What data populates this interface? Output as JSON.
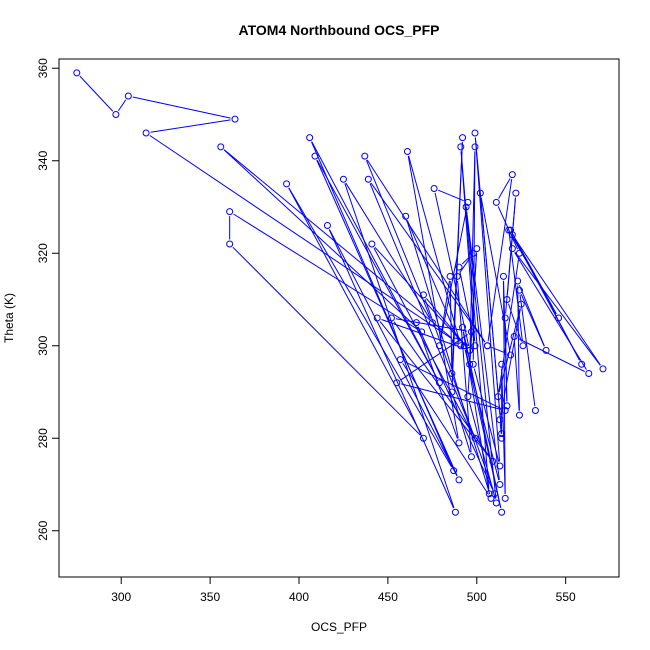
{
  "chart_data": {
    "type": "line",
    "title": "ATOM4 Northbound OCS_PFP",
    "xlabel": "OCS_PFP",
    "ylabel": "Theta (K)",
    "xlim": [
      265,
      580
    ],
    "ylim": [
      250,
      362
    ],
    "x_ticks": [
      300,
      350,
      400,
      450,
      500,
      550
    ],
    "y_ticks": [
      260,
      280,
      300,
      320,
      340,
      360
    ],
    "grid": false,
    "marker": "open-circle",
    "color": "#0000ff",
    "series": [
      {
        "values": [
          [
            275,
            359
          ],
          [
            297,
            350
          ],
          [
            304,
            354
          ],
          [
            364,
            349
          ],
          [
            314,
            346
          ],
          [
            488,
            301
          ],
          [
            356,
            343
          ],
          [
            469,
            303
          ],
          [
            361,
            329
          ],
          [
            361,
            322
          ],
          [
            470,
            280
          ],
          [
            393,
            335
          ],
          [
            487,
            273
          ],
          [
            406,
            345
          ],
          [
            479,
            292
          ],
          [
            409,
            341
          ],
          [
            490,
            271
          ],
          [
            416,
            326
          ],
          [
            488,
            264
          ],
          [
            425,
            336
          ],
          [
            475,
            305
          ],
          [
            437,
            341
          ],
          [
            506,
            300
          ],
          [
            439,
            336
          ],
          [
            499,
            280
          ],
          [
            441,
            322
          ],
          [
            496,
            299
          ],
          [
            444,
            306
          ],
          [
            509,
            275
          ],
          [
            452,
            306
          ],
          [
            497,
            303
          ],
          [
            455,
            292
          ],
          [
            516,
            286
          ],
          [
            457,
            297
          ],
          [
            508,
            267
          ],
          [
            460,
            328
          ],
          [
            491,
            300
          ],
          [
            461,
            342
          ],
          [
            490,
            279
          ],
          [
            466,
            305
          ],
          [
            510,
            268
          ],
          [
            470,
            311
          ],
          [
            496,
            299
          ],
          [
            476,
            334
          ],
          [
            495,
            331
          ],
          [
            479,
            300
          ],
          [
            485,
            315
          ],
          [
            486,
            294
          ],
          [
            492,
            345
          ],
          [
            486,
            290
          ],
          [
            497,
            276
          ],
          [
            489,
            315
          ],
          [
            498,
            320
          ],
          [
            490,
            317
          ],
          [
            499,
            300
          ],
          [
            491,
            343
          ],
          [
            507,
            268
          ],
          [
            492,
            304
          ],
          [
            514,
            264
          ],
          [
            493,
            300
          ],
          [
            513,
            270
          ],
          [
            494,
            330
          ],
          [
            511,
            266
          ],
          [
            495,
            289
          ],
          [
            500,
            321
          ],
          [
            496,
            296
          ],
          [
            499,
            343
          ],
          [
            498,
            296
          ],
          [
            513,
            274
          ],
          [
            499,
            346
          ],
          [
            514,
            281
          ],
          [
            502,
            333
          ],
          [
            519,
            298
          ],
          [
            506,
            300
          ],
          [
            520,
            337
          ],
          [
            511,
            331
          ],
          [
            524,
            320
          ],
          [
            512,
            289
          ],
          [
            525,
            309
          ],
          [
            513,
            284
          ],
          [
            514,
            280
          ],
          [
            514,
            296
          ],
          [
            516,
            267
          ],
          [
            515,
            315
          ],
          [
            517,
            287
          ],
          [
            516,
            306
          ],
          [
            522,
            333
          ],
          [
            517,
            310
          ],
          [
            526,
            300
          ],
          [
            518,
            325
          ],
          [
            546,
            306
          ],
          [
            519,
            325
          ],
          [
            559,
            296
          ],
          [
            520,
            324
          ],
          [
            571,
            295
          ],
          [
            520,
            321
          ],
          [
            563,
            294
          ],
          [
            521,
            302
          ],
          [
            524,
            285
          ],
          [
            523,
            314
          ],
          [
            539,
            299
          ],
          [
            524,
            312
          ],
          [
            533,
            286
          ]
        ]
      }
    ]
  }
}
